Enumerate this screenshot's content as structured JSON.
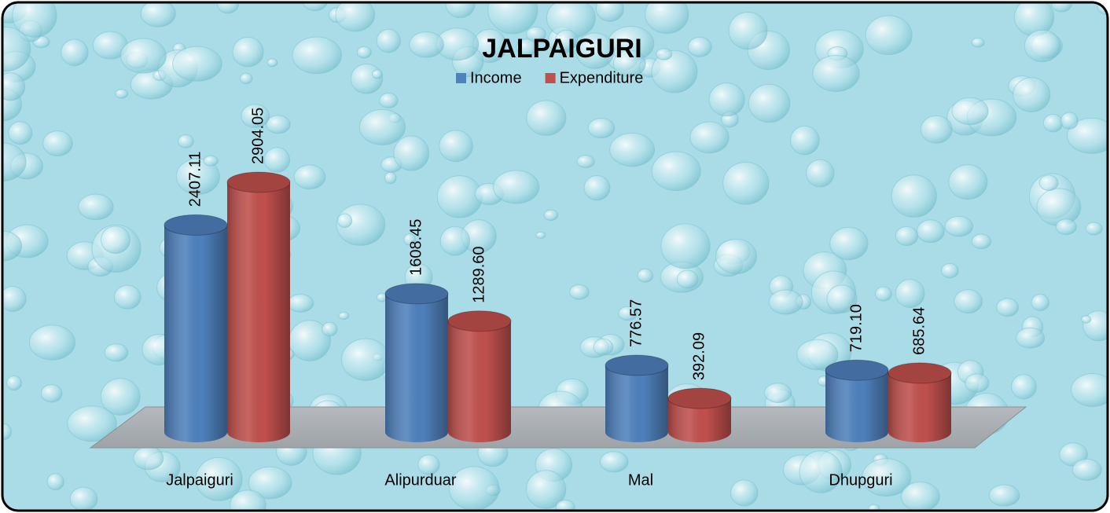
{
  "chart_data": {
    "type": "bar",
    "title": "JALPAIGURI",
    "categories": [
      "Jalpaiguri",
      "Alipurduar",
      "Mal",
      "Dhupguri"
    ],
    "series": [
      {
        "name": "Income",
        "color": "#4f81bd",
        "values": [
          2407.11,
          1608.45,
          776.57,
          719.1
        ],
        "value_labels": [
          "2407.11",
          "1608.45",
          "776.57",
          "719.10"
        ]
      },
      {
        "name": "Expenditure",
        "color": "#c0504d",
        "values": [
          2904.05,
          1289.6,
          392.09,
          685.64
        ],
        "value_labels": [
          "2904.05",
          "1289.60",
          "392.09",
          "685.64"
        ]
      }
    ],
    "legend": "top"
  }
}
